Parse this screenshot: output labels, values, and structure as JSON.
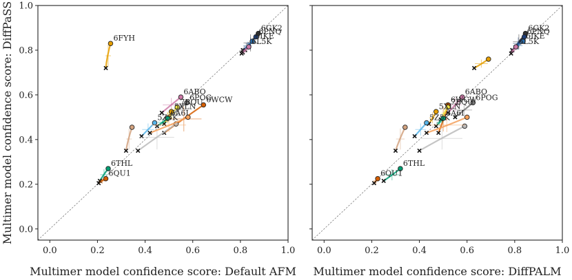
{
  "chart_data": [
    {
      "type": "scatter",
      "title": "",
      "xlabel": "Multimer model confidence score: Default AFM",
      "ylabel": "Multimer model confidence score: DiffPaSS",
      "xlim": [
        -0.05,
        1.0
      ],
      "ylim": [
        -0.05,
        1.0
      ],
      "xticks": [
        "0.0",
        "0.2",
        "0.4",
        "0.6",
        "0.8",
        "1.0"
      ],
      "yticks": [
        "0.0",
        "0.2",
        "0.4",
        "0.6",
        "0.8",
        "1.0"
      ],
      "diagonal": true,
      "series": [
        {
          "name": "6FYH",
          "color": "#e69f00",
          "start": [
            0.235,
            0.72
          ],
          "end": [
            0.255,
            0.83
          ],
          "label": "6FYH"
        },
        {
          "name": "6GK2",
          "color": "#333333",
          "start": [
            0.81,
            0.79
          ],
          "end": [
            0.875,
            0.875
          ],
          "label": "6GK2"
        },
        {
          "name": "6PNQ",
          "color": "#1f3f7a",
          "start": [
            0.82,
            0.8
          ],
          "end": [
            0.865,
            0.86
          ],
          "label": "6PNQ"
        },
        {
          "name": "6IKE",
          "color": "#2a6fb0",
          "start": [
            0.81,
            0.8
          ],
          "end": [
            0.85,
            0.84
          ],
          "label": "6IKE"
        },
        {
          "name": "6L5K",
          "color": "#cc79a7",
          "start": [
            0.805,
            0.785
          ],
          "end": [
            0.835,
            0.815
          ],
          "label": "6L5K"
        },
        {
          "name": "6ABO",
          "color": "#cc79a7",
          "start": [
            0.47,
            0.52
          ],
          "end": [
            0.55,
            0.59
          ],
          "label": "6ABO"
        },
        {
          "name": "6POG",
          "color": "#777777",
          "start": [
            0.5,
            0.5
          ],
          "end": [
            0.575,
            0.565
          ],
          "label": "6POG"
        },
        {
          "name": "6WCW",
          "color": "#d55e00",
          "start": [
            0.48,
            0.43
          ],
          "end": [
            0.645,
            0.555
          ],
          "label": "6WCW"
        },
        {
          "name": "7BQU",
          "color": "#f0e442",
          "start": [
            0.49,
            0.49
          ],
          "end": [
            0.535,
            0.545
          ],
          "label": "7BQU"
        },
        {
          "name": "5XLN",
          "color": "#e69f00",
          "start": [
            0.48,
            0.47
          ],
          "end": [
            0.51,
            0.525
          ],
          "label": "5XLN"
        },
        {
          "name": "6A6I",
          "color": "#009e73",
          "start": [
            0.45,
            0.46
          ],
          "end": [
            0.495,
            0.495
          ],
          "label": "6A6I"
        },
        {
          "name": "5Z5K",
          "color": "#56b4e9",
          "start": [
            0.385,
            0.415
          ],
          "end": [
            0.44,
            0.475
          ],
          "label": "5Z5K"
        },
        {
          "name": "6THL",
          "color": "#009e73",
          "start": [
            0.21,
            0.215
          ],
          "end": [
            0.245,
            0.27
          ],
          "label": "6THL"
        },
        {
          "name": "6QU1",
          "color": "#d55e00",
          "start": [
            0.205,
            0.205
          ],
          "end": [
            0.235,
            0.225
          ],
          "label": "6QU1"
        },
        {
          "name": "tan",
          "color": "#d2a27f",
          "start": [
            0.32,
            0.35
          ],
          "end": [
            0.345,
            0.455
          ],
          "label": ""
        },
        {
          "name": "grey",
          "color": "#bbbbbb",
          "start": [
            0.37,
            0.35
          ],
          "end": [
            0.53,
            0.47
          ],
          "label": ""
        },
        {
          "name": "peach",
          "color": "#f5a05a",
          "start": [
            0.42,
            0.43
          ],
          "end": [
            0.58,
            0.5
          ],
          "label": ""
        }
      ]
    },
    {
      "type": "scatter",
      "title": "",
      "xlabel": "Multimer model confidence score: DiffPALM",
      "ylabel": "",
      "xlim": [
        -0.05,
        1.0
      ],
      "ylim": [
        -0.05,
        1.0
      ],
      "xticks": [
        "0.0",
        "0.2",
        "0.4",
        "0.6",
        "0.8",
        "1.0"
      ],
      "yticks": [],
      "diagonal": true,
      "series": [
        {
          "name": "6FYH",
          "color": "#e69f00",
          "start": [
            0.63,
            0.72
          ],
          "end": [
            0.69,
            0.76
          ],
          "label": ""
        },
        {
          "name": "6GK2",
          "color": "#333333",
          "start": [
            0.79,
            0.8
          ],
          "end": [
            0.845,
            0.875
          ],
          "label": "6GK2"
        },
        {
          "name": "6PNQ",
          "color": "#1f3f7a",
          "start": [
            0.79,
            0.8
          ],
          "end": [
            0.84,
            0.86
          ],
          "label": "6PNQ"
        },
        {
          "name": "6IKE",
          "color": "#2a6fb0",
          "start": [
            0.79,
            0.8
          ],
          "end": [
            0.835,
            0.84
          ],
          "label": "6IKE"
        },
        {
          "name": "6L5K",
          "color": "#cc79a7",
          "start": [
            0.785,
            0.785
          ],
          "end": [
            0.805,
            0.815
          ],
          "label": "6L5K"
        },
        {
          "name": "6ABO",
          "color": "#cc79a7",
          "start": [
            0.52,
            0.52
          ],
          "end": [
            0.58,
            0.59
          ],
          "label": "6ABO"
        },
        {
          "name": "6POG",
          "color": "#777777",
          "start": [
            0.55,
            0.5
          ],
          "end": [
            0.625,
            0.565
          ],
          "label": "6POG"
        },
        {
          "name": "6WCW",
          "color": "#d55e00",
          "start": [
            0.48,
            0.43
          ],
          "end": [
            0.52,
            0.555
          ],
          "label": "6WCW"
        },
        {
          "name": "7BQU",
          "color": "#f0e442",
          "start": [
            0.49,
            0.49
          ],
          "end": [
            0.52,
            0.545
          ],
          "label": "7BQU"
        },
        {
          "name": "5XLN",
          "color": "#e69f00",
          "start": [
            0.44,
            0.47
          ],
          "end": [
            0.47,
            0.525
          ],
          "label": "5XLN"
        },
        {
          "name": "6A6I",
          "color": "#009e73",
          "start": [
            0.47,
            0.46
          ],
          "end": [
            0.5,
            0.495
          ],
          "label": "6A6I"
        },
        {
          "name": "5Z5K",
          "color": "#56b4e9",
          "start": [
            0.38,
            0.415
          ],
          "end": [
            0.43,
            0.475
          ],
          "label": "5Z5K"
        },
        {
          "name": "6THL",
          "color": "#009e73",
          "start": [
            0.25,
            0.215
          ],
          "end": [
            0.32,
            0.27
          ],
          "label": "6THL"
        },
        {
          "name": "6QU1",
          "color": "#d55e00",
          "start": [
            0.21,
            0.205
          ],
          "end": [
            0.225,
            0.225
          ],
          "label": "6QU1"
        },
        {
          "name": "tan",
          "color": "#d2a27f",
          "start": [
            0.3,
            0.35
          ],
          "end": [
            0.34,
            0.455
          ],
          "label": ""
        },
        {
          "name": "grey",
          "color": "#bbbbbb",
          "start": [
            0.4,
            0.35
          ],
          "end": [
            0.59,
            0.46
          ],
          "label": ""
        },
        {
          "name": "peach",
          "color": "#f5a05a",
          "start": [
            0.43,
            0.43
          ],
          "end": [
            0.6,
            0.5
          ],
          "label": ""
        }
      ]
    }
  ]
}
